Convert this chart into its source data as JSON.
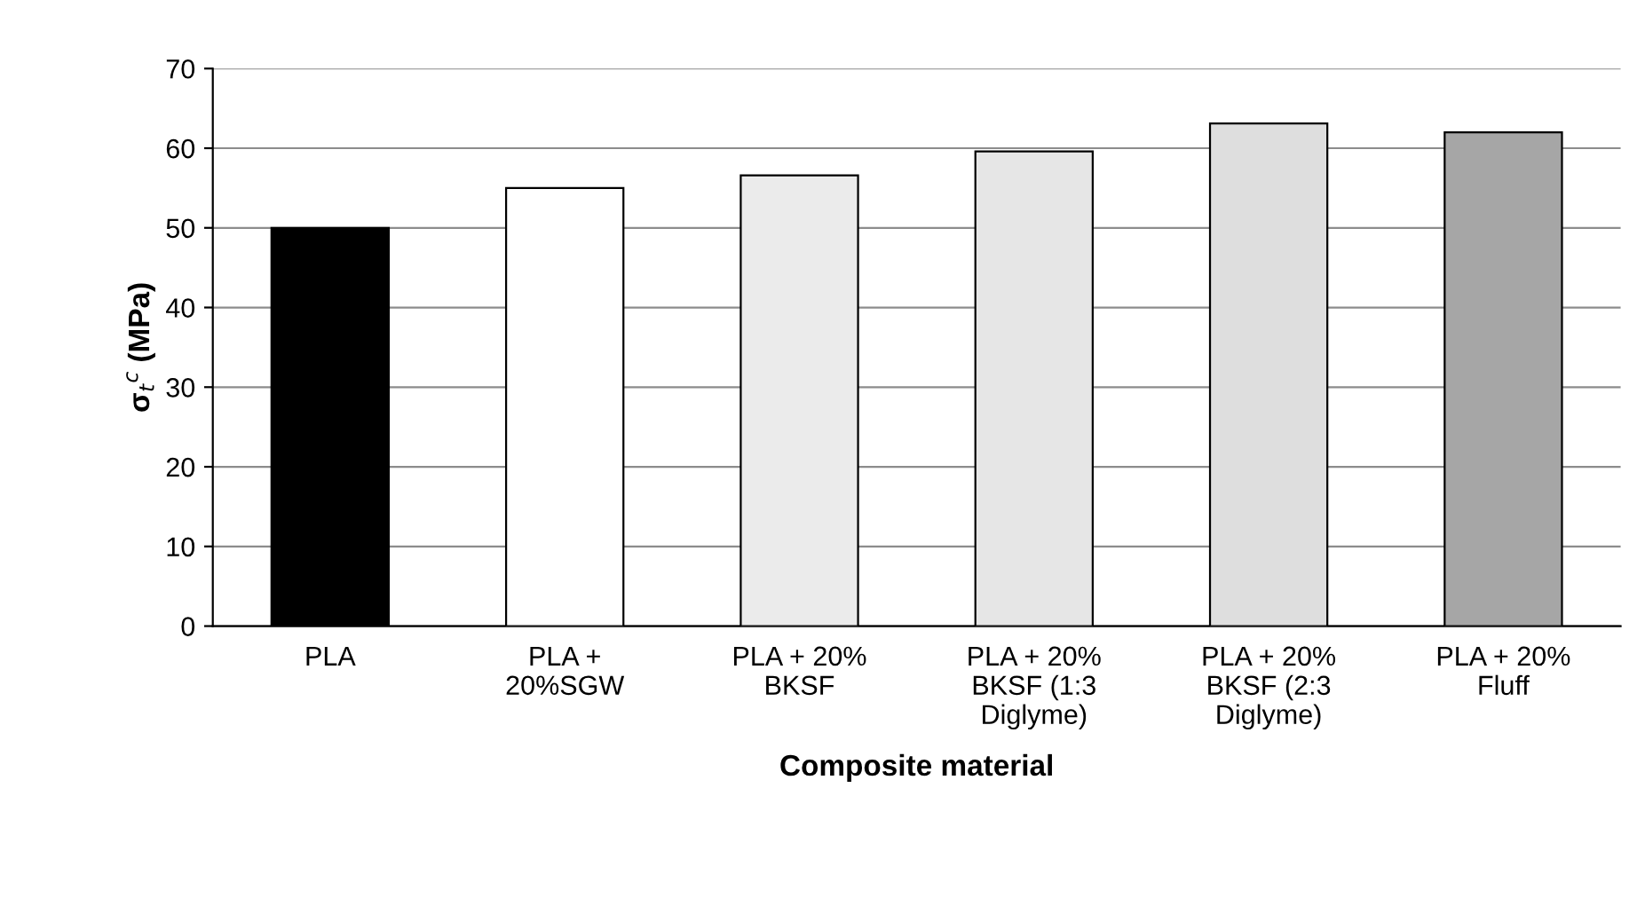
{
  "chart_data": {
    "type": "bar",
    "xlabel": "Composite material",
    "ylabel": "σ$_{t}$$^{c}$ (MPa)",
    "categories": [
      "PLA",
      "PLA +\n20%SGW",
      "PLA + 20%\nBKSF",
      "PLA + 20%\nBKSF (1:3\nDiglyme)",
      "PLA + 20%\nBKSF (2:3\nDiglyme)",
      "PLA + 20%\nFluff"
    ],
    "values": [
      50,
      55,
      56.6,
      59.6,
      63.1,
      62
    ],
    "colors": [
      "#000000",
      "#ffffff",
      "#ebebeb",
      "#e6e6e6",
      "#dedede",
      "#a6a6a6"
    ],
    "ylim": [
      0,
      70
    ],
    "yticks": [
      0,
      10,
      20,
      30,
      40,
      50,
      60,
      70
    ],
    "grid": "y",
    "legend": false
  }
}
